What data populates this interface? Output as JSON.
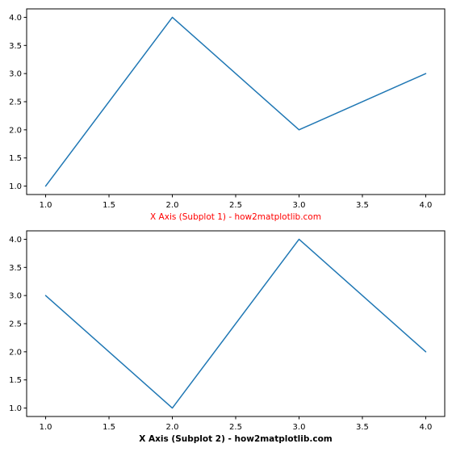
{
  "colors": {
    "series": "#1f77b4",
    "axis": "#000000",
    "xlabel_subplot1": "#ff0000",
    "xlabel_subplot2": "#000000"
  },
  "chart_data": [
    {
      "type": "line",
      "title": "",
      "xlabel": "X Axis (Subplot 1) - how2matplotlib.com",
      "xlabel_style": "normal",
      "ylabel": "",
      "x": [
        1,
        2,
        3,
        4
      ],
      "series": [
        {
          "values": [
            1,
            4,
            2,
            3
          ]
        }
      ],
      "xlim": [
        0.85,
        4.15
      ],
      "ylim": [
        0.85,
        4.15
      ],
      "xticks": [
        "1.0",
        "1.5",
        "2.0",
        "2.5",
        "3.0",
        "3.5",
        "4.0"
      ],
      "yticks": [
        "1.0",
        "1.5",
        "2.0",
        "2.5",
        "3.0",
        "3.5",
        "4.0"
      ],
      "grid": false
    },
    {
      "type": "line",
      "title": "",
      "xlabel": "X Axis (Subplot 2) - how2matplotlib.com",
      "xlabel_style": "bold",
      "ylabel": "",
      "x": [
        1,
        2,
        3,
        4
      ],
      "series": [
        {
          "values": [
            3,
            1,
            4,
            2
          ]
        }
      ],
      "xlim": [
        0.85,
        4.15
      ],
      "ylim": [
        0.85,
        4.15
      ],
      "xticks": [
        "1.0",
        "1.5",
        "2.0",
        "2.5",
        "3.0",
        "3.5",
        "4.0"
      ],
      "yticks": [
        "1.0",
        "1.5",
        "2.0",
        "2.5",
        "3.0",
        "3.5",
        "4.0"
      ],
      "grid": false
    }
  ]
}
